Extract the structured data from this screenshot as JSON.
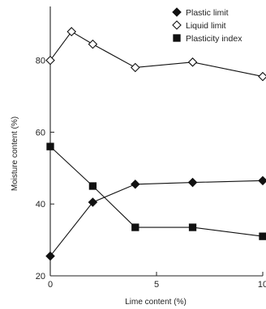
{
  "chart_data": {
    "type": "line",
    "title": "",
    "xlabel": "Lime content (%)",
    "ylabel": "Moisture content (%)",
    "xlim": [
      0,
      10
    ],
    "ylim": [
      20,
      95
    ],
    "x_ticks": [
      "0",
      "5",
      "10"
    ],
    "y_ticks": [
      "20",
      "40",
      "60",
      "80"
    ],
    "grid": false,
    "legend_position": "top-right",
    "series": [
      {
        "name": "Plastic limit",
        "marker": "filled-diamond",
        "color": "#111111",
        "x": [
          0,
          2,
          4,
          6.7,
          10
        ],
        "y": [
          25.5,
          40.5,
          45.5,
          46,
          46.5
        ]
      },
      {
        "name": "Liquid limit",
        "marker": "open-diamond",
        "color": "#111111",
        "x": [
          0,
          1,
          2,
          4,
          6.7,
          10
        ],
        "y": [
          80,
          88,
          84.5,
          78,
          79.5,
          75.5
        ]
      },
      {
        "name": "Plasticity index",
        "marker": "filled-square",
        "color": "#111111",
        "x": [
          0,
          2,
          4,
          6.7,
          10
        ],
        "y": [
          56,
          45,
          33.5,
          33.5,
          31
        ]
      }
    ]
  }
}
